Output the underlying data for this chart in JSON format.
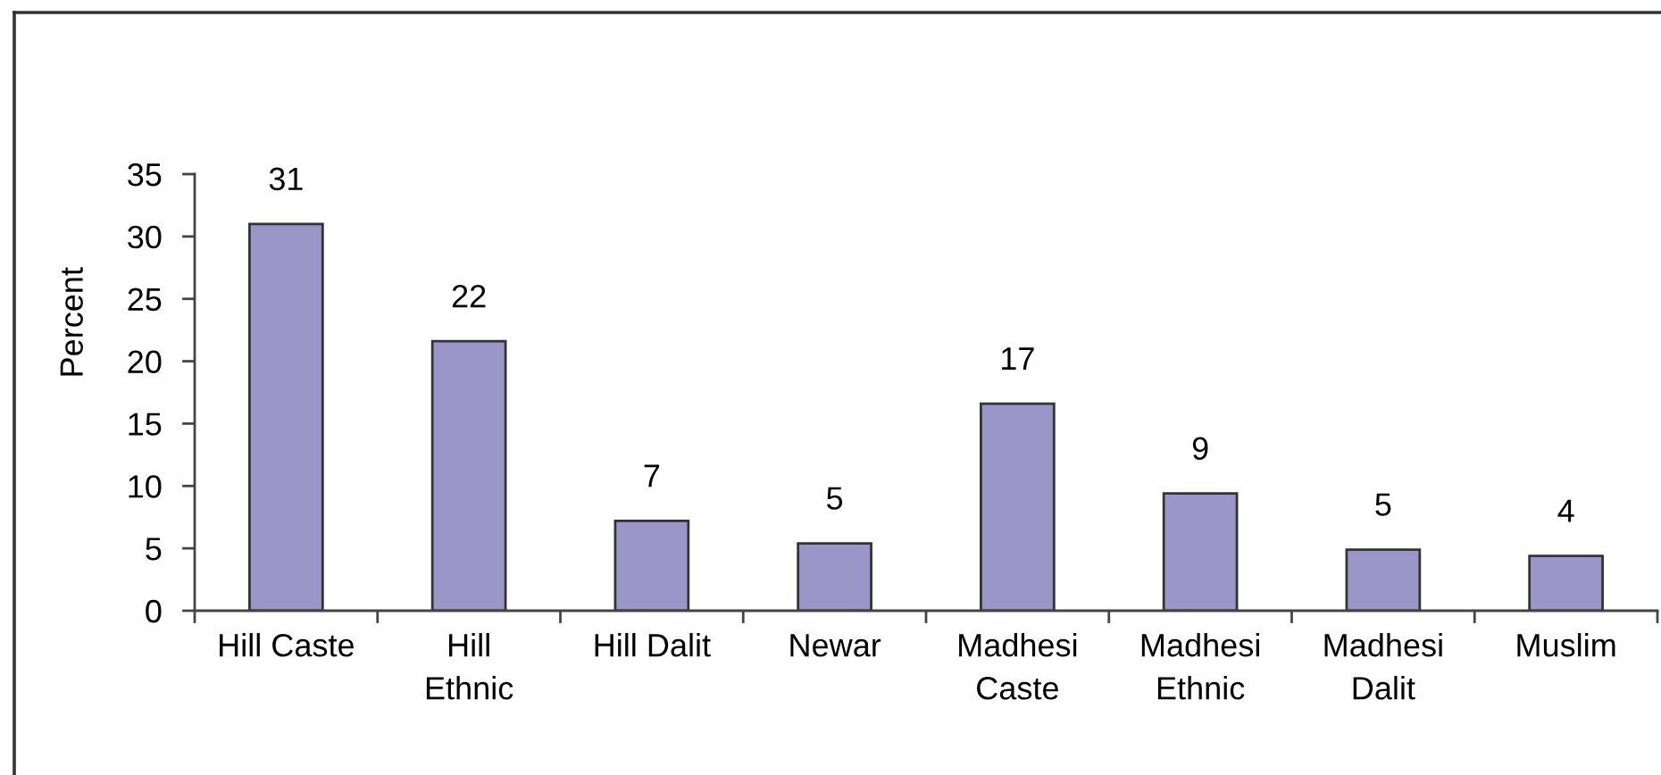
{
  "chart_data": {
    "type": "bar",
    "ylabel": "Percent",
    "categories": [
      "Hill Caste",
      "Hill\nEthnic",
      "Hill Dalit",
      "Newar",
      "Madhesi\nCaste",
      "Madhesi\nEthnic",
      "Madhesi\nDalit",
      "Muslim"
    ],
    "values": [
      31,
      21.6,
      7.2,
      5.4,
      16.6,
      9.4,
      4.9,
      4.4
    ],
    "value_labels": [
      "31",
      "22",
      "7",
      "5",
      "17",
      "9",
      "5",
      "4"
    ],
    "color": "#9a96c8",
    "ylim": [
      0,
      35
    ],
    "yticks": [
      0,
      5,
      10,
      15,
      20,
      25,
      30,
      35
    ]
  }
}
